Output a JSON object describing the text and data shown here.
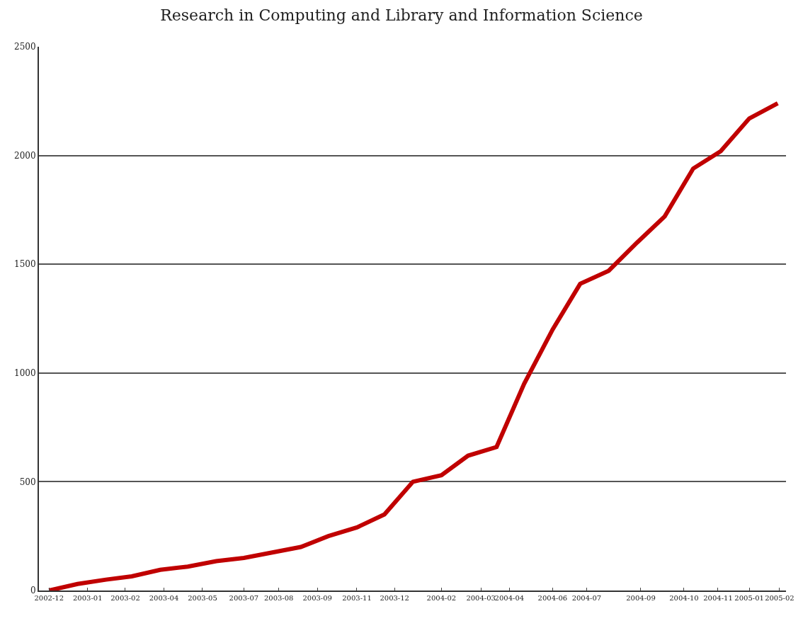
{
  "chart_data": {
    "type": "line",
    "title": "Research in Computing and Library and Information Science",
    "x": [
      "2002-12",
      "2003-01",
      "2003-02",
      "2003-03",
      "2003-04",
      "2003-05",
      "2003-06",
      "2003-07",
      "2003-08",
      "2003-09",
      "2003-10",
      "2003-11",
      "2003-12",
      "2004-01",
      "2004-02",
      "2004-03",
      "2004-04",
      "2004-05",
      "2004-06",
      "2004-07",
      "2004-08",
      "2004-09",
      "2004-10",
      "2004-11",
      "2004-12",
      "2005-01",
      "2005-02"
    ],
    "series": [
      {
        "color": "#c00000",
        "values": [
          0,
          30,
          50,
          65,
          95,
          110,
          135,
          150,
          175,
          200,
          250,
          290,
          350,
          500,
          530,
          620,
          660,
          950,
          1200,
          1410,
          1470,
          1600,
          1720,
          1940,
          2020,
          2170,
          2240
        ]
      }
    ],
    "xlim": [
      "2002-11-20",
      "2005-02-10"
    ],
    "xticks": [
      {
        "value": "2002-12-01",
        "label": "2002-12"
      },
      {
        "value": "2003-01-12",
        "label": "2003-01"
      },
      {
        "value": "2003-02-22",
        "label": "2003-02"
      },
      {
        "value": "2003-04-05",
        "label": "2003-04"
      },
      {
        "value": "2003-05-17",
        "label": "2003-05"
      },
      {
        "value": "2003-07-01",
        "label": "2003-07"
      },
      {
        "value": "2003-08-08",
        "label": "2003-08"
      },
      {
        "value": "2003-09-19",
        "label": "2003-09"
      },
      {
        "value": "2003-11-01",
        "label": "2003-11"
      },
      {
        "value": "2003-12-12",
        "label": "2003-12"
      },
      {
        "value": "2004-02-01",
        "label": "2004-02"
      },
      {
        "value": "2004-03-15",
        "label": "2004-03"
      },
      {
        "value": "2004-04-15",
        "label": "2004-04"
      },
      {
        "value": "2004-06-01",
        "label": "2004-06"
      },
      {
        "value": "2004-07-08",
        "label": "2004-07"
      },
      {
        "value": "2004-09-05",
        "label": "2004-09"
      },
      {
        "value": "2004-10-22",
        "label": "2004-10"
      },
      {
        "value": "2004-11-28",
        "label": "2004-11"
      },
      {
        "value": "2005-01-01",
        "label": "2005-01"
      },
      {
        "value": "2005-02-03",
        "label": "2005-02"
      }
    ],
    "ylim": [
      0,
      2500
    ],
    "yticks": [
      0,
      500,
      1000,
      1500,
      2000,
      2500
    ],
    "grid": "y",
    "marker": "none",
    "line_style": "solid"
  }
}
